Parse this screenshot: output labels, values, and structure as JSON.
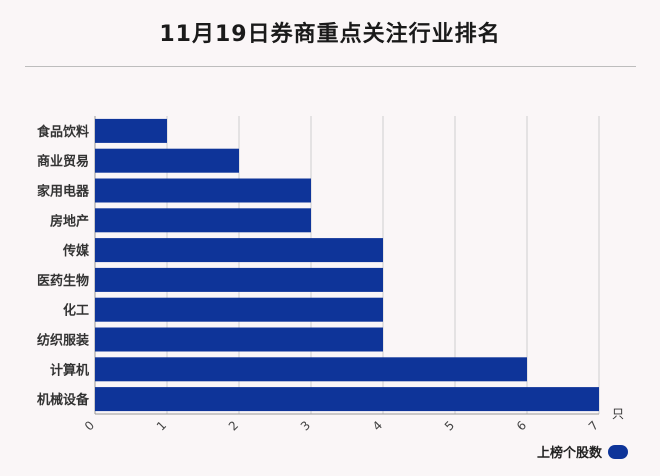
{
  "title": "11月19日券商重点关注行业排名",
  "unit": "只",
  "legend_label": "上榜个股数",
  "colors": {
    "bar": "#0e3499",
    "grid": "#cfcfcf",
    "axis": "#999999"
  },
  "chart_data": {
    "type": "bar",
    "orientation": "horizontal",
    "categories": [
      "食品饮料",
      "商业贸易",
      "家用电器",
      "房地产",
      "传媒",
      "医药生物",
      "化工",
      "纺织服装",
      "计算机",
      "机械设备"
    ],
    "series": [
      {
        "name": "上榜个股数",
        "values": [
          1,
          2,
          3,
          3,
          4,
          4,
          4,
          4,
          6,
          7
        ]
      }
    ],
    "xlim": [
      0,
      7
    ],
    "xticks": [
      0,
      1,
      2,
      3,
      4,
      5,
      6,
      7
    ],
    "grid": true,
    "legend": "bottom-right"
  }
}
